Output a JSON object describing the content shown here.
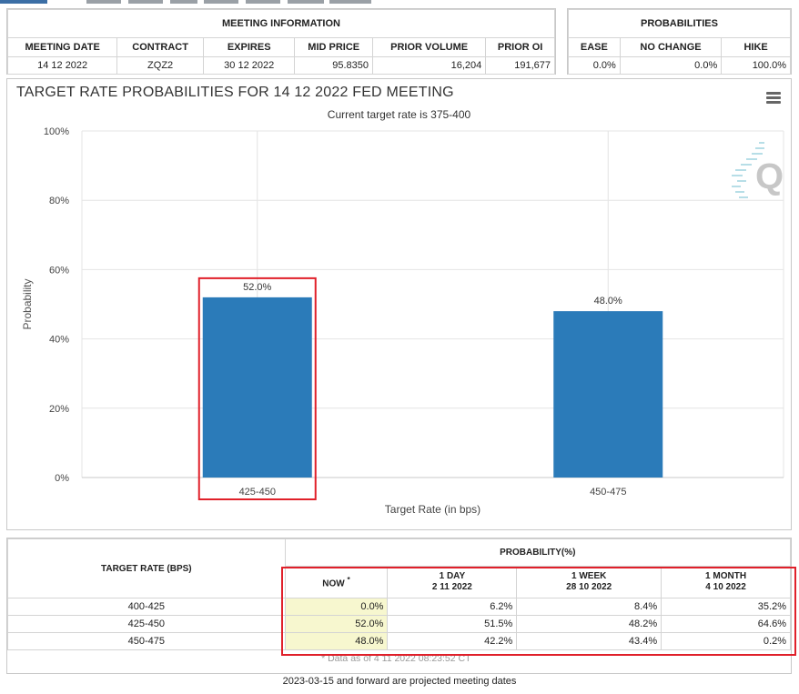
{
  "meeting_info": {
    "caption": "MEETING INFORMATION",
    "headers": [
      "MEETING DATE",
      "CONTRACT",
      "EXPIRES",
      "MID PRICE",
      "PRIOR VOLUME",
      "PRIOR OI"
    ],
    "row": [
      "14 12 2022",
      "ZQZ2",
      "30 12 2022",
      "95.8350",
      "16,204",
      "191,677"
    ]
  },
  "probabilities": {
    "caption": "PROBABILITIES",
    "headers": [
      "EASE",
      "NO CHANGE",
      "HIKE"
    ],
    "row": [
      "0.0%",
      "0.0%",
      "100.0%"
    ]
  },
  "chart": {
    "title": "TARGET RATE PROBABILITIES FOR 14 12 2022 FED MEETING",
    "subtitle": "Current target rate is 375-400",
    "menu_icon": "hamburger-menu-icon",
    "watermark_icon": "cme-q-logo-icon",
    "highlight_color": "#e0202a",
    "bar_color": "#2b7bb9"
  },
  "chart_data": {
    "type": "bar",
    "categories": [
      "425-450",
      "450-475"
    ],
    "values": [
      52.0,
      48.0
    ],
    "data_labels": [
      "52.0%",
      "48.0%"
    ],
    "xlabel": "Target Rate (in bps)",
    "ylabel": "Probability",
    "ylim": [
      0,
      100
    ],
    "yticks": [
      0,
      20,
      40,
      60,
      80,
      100
    ],
    "ytick_labels": [
      "0%",
      "20%",
      "40%",
      "60%",
      "80%",
      "100%"
    ],
    "grid": true,
    "highlighted_category": "425-450"
  },
  "prob_table": {
    "target_header": "TARGET RATE (BPS)",
    "prob_header": "PROBABILITY(%)",
    "columns": [
      {
        "line1": "NOW",
        "line2": ""
      },
      {
        "line1": "1 DAY",
        "line2": "2 11 2022"
      },
      {
        "line1": "1 WEEK",
        "line2": "28 10 2022"
      },
      {
        "line1": "1 MONTH",
        "line2": "4 10 2022"
      }
    ],
    "now_marker": "*",
    "rows": [
      {
        "rate": "400-425",
        "now": "0.0%",
        "day": "6.2%",
        "week": "8.4%",
        "month": "35.2%"
      },
      {
        "rate": "425-450",
        "now": "52.0%",
        "day": "51.5%",
        "week": "48.2%",
        "month": "64.6%"
      },
      {
        "rate": "450-475",
        "now": "48.0%",
        "day": "42.2%",
        "week": "43.4%",
        "month": "0.2%"
      }
    ],
    "data_note": "* Data as of 4 11 2022 08:23:52 CT",
    "now_fill_color": "#f7f7cf"
  },
  "footnote": "2023-03-15 and forward are projected meeting dates"
}
